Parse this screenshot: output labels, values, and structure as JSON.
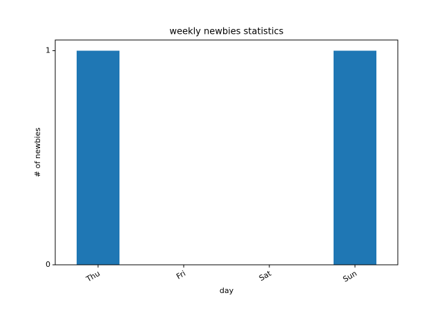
{
  "chart_data": {
    "type": "bar",
    "title": "weekly newbies statistics",
    "categories": [
      "Thu",
      "Fri",
      "Sat",
      "Sun"
    ],
    "values": [
      1,
      0,
      0,
      1
    ],
    "color": "#1f77b4",
    "xlabel": "day",
    "ylabel": "# of newbies",
    "ylim": [
      0,
      1.05
    ],
    "yticks": [
      0,
      1
    ],
    "grid": false
  }
}
